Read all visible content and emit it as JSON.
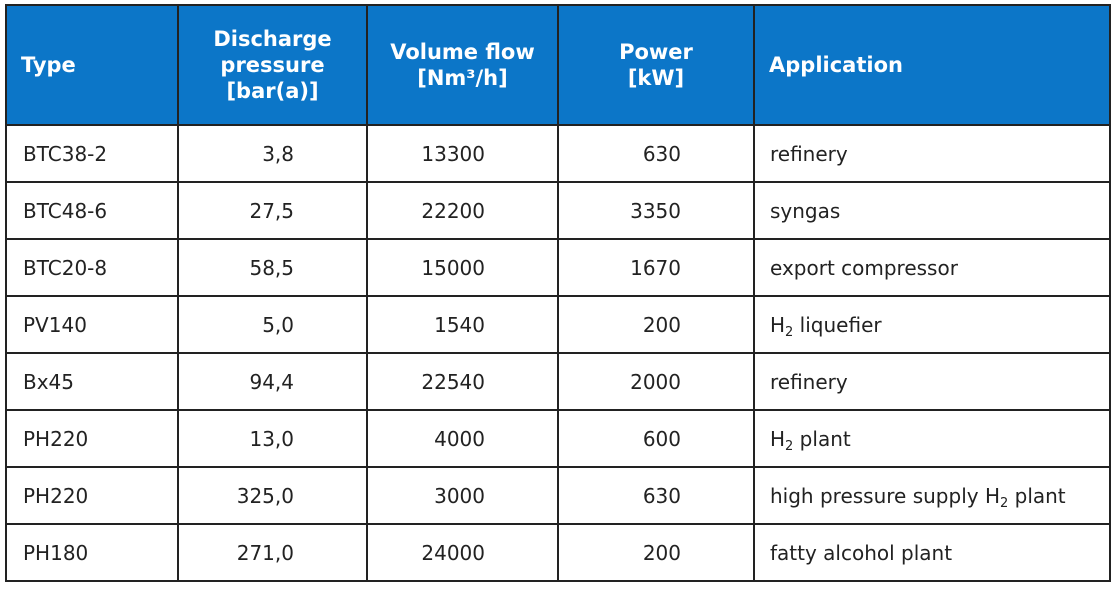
{
  "table": {
    "headers": {
      "type": "Type",
      "pressure": [
        "Discharge",
        "pressure",
        "[bar(a)]"
      ],
      "flow": [
        "Volume flow",
        "[Nm³/h]"
      ],
      "power": [
        "Power",
        "[kW]"
      ],
      "application": "Application"
    },
    "rows": [
      {
        "type": "BTC38-2",
        "pressure": "3,8",
        "flow": "13300",
        "power": "630",
        "app": {
          "pre": "refinery",
          "sub": "",
          "post": ""
        }
      },
      {
        "type": "BTC48-6",
        "pressure": "27,5",
        "flow": "22200",
        "power": "3350",
        "app": {
          "pre": "syngas",
          "sub": "",
          "post": ""
        }
      },
      {
        "type": "BTC20-8",
        "pressure": "58,5",
        "flow": "15000",
        "power": "1670",
        "app": {
          "pre": "export compressor",
          "sub": "",
          "post": ""
        }
      },
      {
        "type": "PV140",
        "pressure": "5,0",
        "flow": "1540",
        "power": "200",
        "app": {
          "pre": "H",
          "sub": "2",
          "post": " liquefier"
        }
      },
      {
        "type": "Bx45",
        "pressure": "94,4",
        "flow": "22540",
        "power": "2000",
        "app": {
          "pre": "refinery",
          "sub": "",
          "post": ""
        }
      },
      {
        "type": "PH220",
        "pressure": "13,0",
        "flow": "4000",
        "power": "600",
        "app": {
          "pre": "H",
          "sub": "2",
          "post": " plant"
        }
      },
      {
        "type": "PH220",
        "pressure": "325,0",
        "flow": "3000",
        "power": "630",
        "app": {
          "pre": "high pressure supply H",
          "sub": "2",
          "post": " plant"
        }
      },
      {
        "type": "PH180",
        "pressure": "271,0",
        "flow": "24000",
        "power": "200",
        "app": {
          "pre": "fatty alcohol plant",
          "sub": "",
          "post": ""
        }
      }
    ]
  },
  "colors": {
    "header_bg": "#0c76c8",
    "header_text": "#ffffff",
    "border": "#222222",
    "body_text": "#222222"
  }
}
